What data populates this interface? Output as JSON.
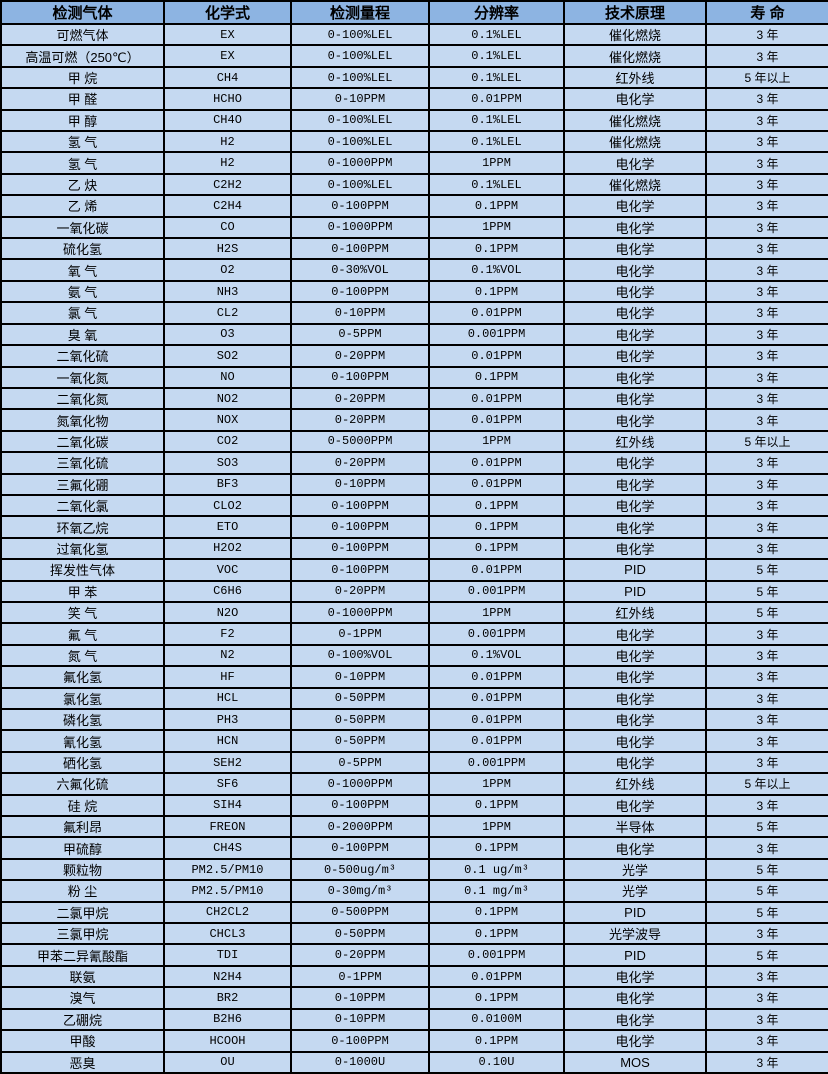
{
  "colors": {
    "header_bg": "#8DB4E2",
    "row_bg": "#C5D9F1",
    "border": "#000000",
    "text": "#000000"
  },
  "table": {
    "headers": [
      "检测气体",
      "化学式",
      "检测量程",
      "分辨率",
      "技术原理",
      "寿 命"
    ],
    "column_keys": [
      "gas",
      "formula",
      "range",
      "resolution",
      "principle",
      "lifespan"
    ],
    "rows": [
      [
        "可燃气体",
        "EX",
        "0-100%LEL",
        "0.1%LEL",
        "催化燃烧",
        "3 年"
      ],
      [
        "高温可燃（250℃）",
        "EX",
        "0-100%LEL",
        "0.1%LEL",
        "催化燃烧",
        "3 年"
      ],
      [
        "甲 烷",
        "CH4",
        "0-100%LEL",
        "0.1%LEL",
        "红外线",
        "5 年以上"
      ],
      [
        "甲 醛",
        "HCHO",
        "0-10PPM",
        "0.01PPM",
        "电化学",
        "3 年"
      ],
      [
        "甲 醇",
        "CH4O",
        "0-100%LEL",
        "0.1%LEL",
        "催化燃烧",
        "3 年"
      ],
      [
        "氢 气",
        "H2",
        "0-100%LEL",
        "0.1%LEL",
        "催化燃烧",
        "3 年"
      ],
      [
        "氢 气",
        "H2",
        "0-1000PPM",
        "1PPM",
        "电化学",
        "3 年"
      ],
      [
        "乙 炔",
        "C2H2",
        "0-100%LEL",
        "0.1%LEL",
        "催化燃烧",
        "3 年"
      ],
      [
        "乙 烯",
        "C2H4",
        "0-100PPM",
        "0.1PPM",
        "电化学",
        "3 年"
      ],
      [
        "一氧化碳",
        "CO",
        "0-1000PPM",
        "1PPM",
        "电化学",
        "3 年"
      ],
      [
        "硫化氢",
        "H2S",
        "0-100PPM",
        "0.1PPM",
        "电化学",
        "3 年"
      ],
      [
        "氧 气",
        "O2",
        "0-30%VOL",
        "0.1%VOL",
        "电化学",
        "3 年"
      ],
      [
        "氨 气",
        "NH3",
        "0-100PPM",
        "0.1PPM",
        "电化学",
        "3 年"
      ],
      [
        "氯 气",
        "CL2",
        "0-10PPM",
        "0.01PPM",
        "电化学",
        "3 年"
      ],
      [
        "臭 氧",
        "O3",
        "0-5PPM",
        "0.001PPM",
        "电化学",
        "3 年"
      ],
      [
        "二氧化硫",
        "SO2",
        "0-20PPM",
        "0.01PPM",
        "电化学",
        "3 年"
      ],
      [
        "一氧化氮",
        "NO",
        "0-100PPM",
        "0.1PPM",
        "电化学",
        "3 年"
      ],
      [
        "二氧化氮",
        "NO2",
        "0-20PPM",
        "0.01PPM",
        "电化学",
        "3 年"
      ],
      [
        "氮氧化物",
        "NOX",
        "0-20PPM",
        "0.01PPM",
        "电化学",
        "3 年"
      ],
      [
        "二氧化碳",
        "CO2",
        "0-5000PPM",
        "1PPM",
        "红外线",
        "5 年以上"
      ],
      [
        "三氧化硫",
        "SO3",
        "0-20PPM",
        "0.01PPM",
        "电化学",
        "3 年"
      ],
      [
        "三氟化硼",
        "BF3",
        "0-10PPM",
        "0.01PPM",
        "电化学",
        "3 年"
      ],
      [
        "二氧化氯",
        "CLO2",
        "0-100PPM",
        "0.1PPM",
        "电化学",
        "3 年"
      ],
      [
        "环氧乙烷",
        "ETO",
        "0-100PPM",
        "0.1PPM",
        "电化学",
        "3 年"
      ],
      [
        "过氧化氢",
        "H2O2",
        "0-100PPM",
        "0.1PPM",
        "电化学",
        "3 年"
      ],
      [
        "挥发性气体",
        "VOC",
        "0-100PPM",
        "0.01PPM",
        "PID",
        "5 年"
      ],
      [
        "甲 苯",
        "C6H6",
        "0-20PPM",
        "0.001PPM",
        "PID",
        "5 年"
      ],
      [
        "笑 气",
        "N2O",
        "0-1000PPM",
        "1PPM",
        "红外线",
        "5 年"
      ],
      [
        "氟 气",
        "F2",
        "0-1PPM",
        "0.001PPM",
        "电化学",
        "3 年"
      ],
      [
        "氮 气",
        "N2",
        "0-100%VOL",
        "0.1%VOL",
        "电化学",
        "3 年"
      ],
      [
        "氟化氢",
        "HF",
        "0-10PPM",
        "0.01PPM",
        "电化学",
        "3 年"
      ],
      [
        "氯化氢",
        "HCL",
        "0-50PPM",
        "0.01PPM",
        "电化学",
        "3 年"
      ],
      [
        "磷化氢",
        "PH3",
        "0-50PPM",
        "0.01PPM",
        "电化学",
        "3 年"
      ],
      [
        "氰化氢",
        "HCN",
        "0-50PPM",
        "0.01PPM",
        "电化学",
        "3 年"
      ],
      [
        "硒化氢",
        "SEH2",
        "0-5PPM",
        "0.001PPM",
        "电化学",
        "3 年"
      ],
      [
        "六氟化硫",
        "SF6",
        "0-1000PPM",
        "1PPM",
        "红外线",
        "5 年以上"
      ],
      [
        "硅 烷",
        "SIH4",
        "0-100PPM",
        "0.1PPM",
        "电化学",
        "3 年"
      ],
      [
        "氟利昂",
        "FREON",
        "0-2000PPM",
        "1PPM",
        "半导体",
        "5 年"
      ],
      [
        "甲硫醇",
        "CH4S",
        "0-100PPM",
        "0.1PPM",
        "电化学",
        "3 年"
      ],
      [
        "颗粒物",
        "PM2.5/PM10",
        "0-500ug/m³",
        "0.1 ug/m³",
        "光学",
        "5 年"
      ],
      [
        "粉 尘",
        "PM2.5/PM10",
        "0-30mg/m³",
        "0.1 mg/m³",
        "光学",
        "5 年"
      ],
      [
        "二氯甲烷",
        "CH2CL2",
        "0-500PPM",
        "0.1PPM",
        "PID",
        "5 年"
      ],
      [
        "三氯甲烷",
        "CHCL3",
        "0-50PPM",
        "0.1PPM",
        "光学波导",
        "3 年"
      ],
      [
        "甲苯二异氰酸酯",
        "TDI",
        "0-20PPM",
        "0.001PPM",
        "PID",
        "5 年"
      ],
      [
        "联氨",
        "N2H4",
        "0-1PPM",
        "0.01PPM",
        "电化学",
        "3 年"
      ],
      [
        "溴气",
        "BR2",
        "0-10PPM",
        "0.1PPM",
        "电化学",
        "3 年"
      ],
      [
        "乙硼烷",
        "B2H6",
        "0-10PPM",
        "0.0100M",
        "电化学",
        "3 年"
      ],
      [
        "甲酸",
        "HCOOH",
        "0-100PPM",
        "0.1PPM",
        "电化学",
        "3 年"
      ],
      [
        "恶臭",
        "OU",
        "0-1000U",
        "0.10U",
        "MOS",
        "3 年"
      ]
    ]
  }
}
